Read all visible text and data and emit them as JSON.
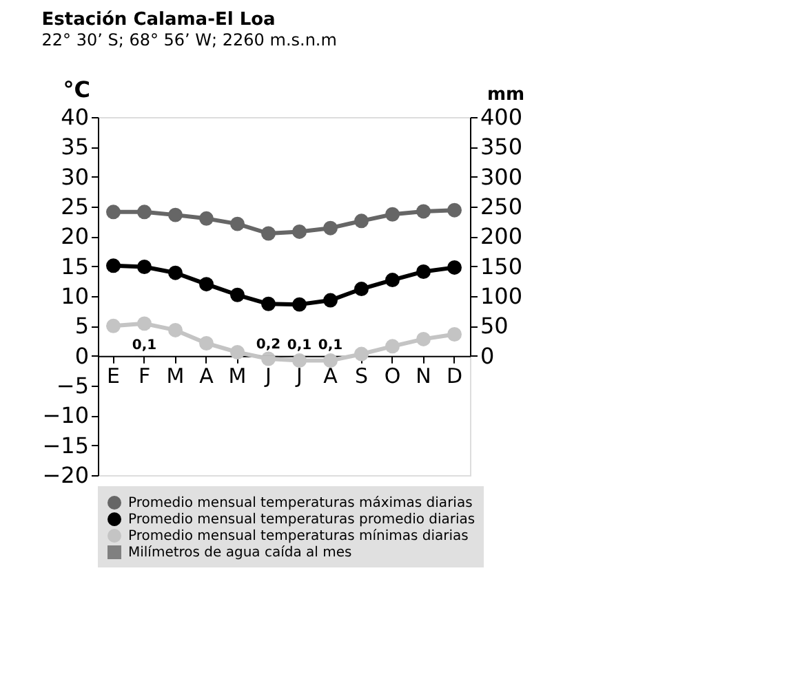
{
  "chart_data": {
    "type": "line",
    "title": "Estación Calama-El Loa",
    "subtitle": "22° 30’ S; 68° 56’ W; 2260 m.s.n.m",
    "ylabel": "°C",
    "y2label": "mm",
    "categories": [
      "E",
      "F",
      "M",
      "A",
      "M",
      "J",
      "J",
      "A",
      "S",
      "O",
      "N",
      "D"
    ],
    "series": [
      {
        "name": "Promedio mensual temperaturas máximas diarias",
        "color": "#666666",
        "values": [
          24.1,
          24.1,
          23.6,
          23.0,
          22.1,
          20.5,
          20.8,
          21.4,
          22.6,
          23.7,
          24.2,
          24.4
        ]
      },
      {
        "name": "Promedio mensual temperaturas promedio diarias",
        "color": "#000000",
        "values": [
          15.1,
          14.9,
          13.9,
          12.0,
          10.2,
          8.7,
          8.6,
          9.3,
          11.2,
          12.7,
          14.1,
          14.8
        ]
      },
      {
        "name": "Promedio mensual temperaturas mínimas diarias",
        "color": "#c4c4c4",
        "values": [
          5.0,
          5.4,
          4.3,
          2.1,
          0.6,
          -0.5,
          -0.8,
          -0.8,
          0.3,
          1.6,
          2.8,
          3.6
        ]
      },
      {
        "name": "Milímetros de agua caída al mes",
        "type": "bar",
        "axis": "y2",
        "color": "#808080",
        "values": [
          null,
          0.1,
          null,
          null,
          null,
          0.2,
          0.1,
          0.1,
          null,
          null,
          null,
          null
        ],
        "value_labels": [
          null,
          "0,1",
          null,
          null,
          null,
          "0,2",
          "0,1",
          "0,1",
          null,
          null,
          null,
          null
        ]
      }
    ],
    "ylim": [
      -20,
      40
    ],
    "yticks": [
      -20,
      -15,
      -10,
      -5,
      0,
      5,
      10,
      15,
      20,
      25,
      30,
      35,
      40
    ],
    "y2lim": [
      0,
      400
    ],
    "y2ticks": [
      0,
      50,
      100,
      150,
      200,
      250,
      300,
      350,
      400
    ],
    "marker": "circle",
    "grid": false,
    "legend": "bottom"
  }
}
